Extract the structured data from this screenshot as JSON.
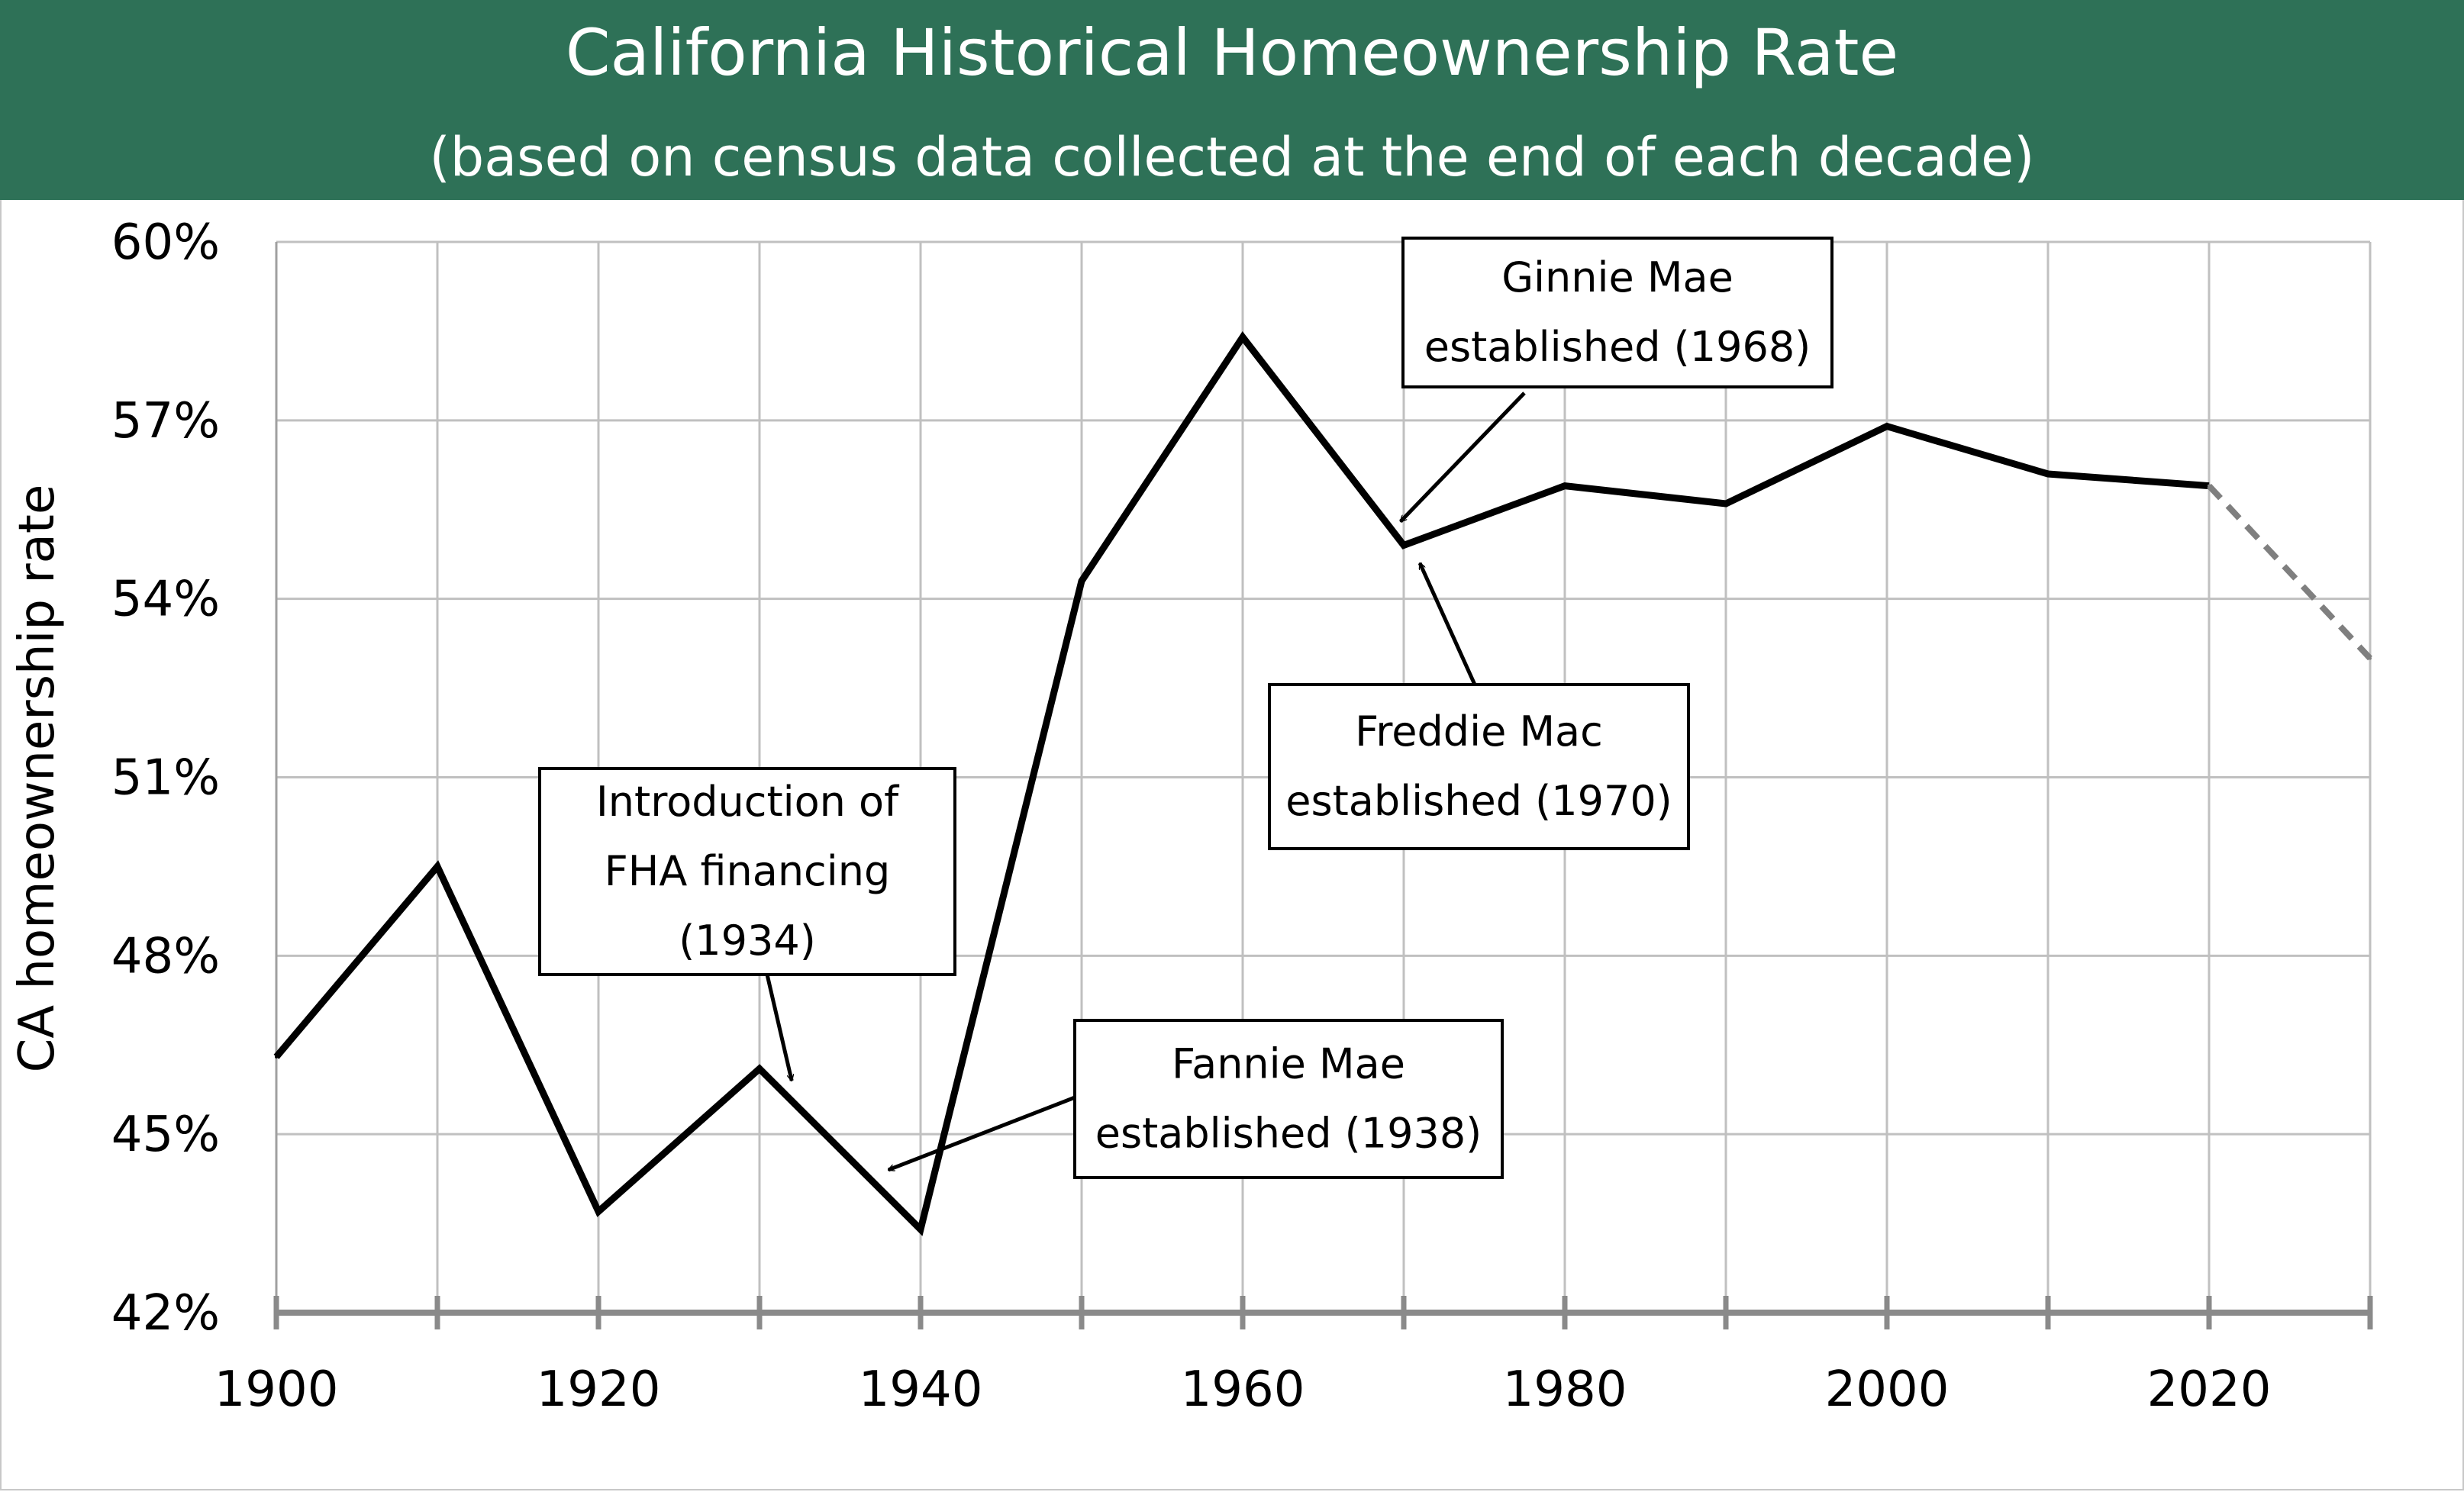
{
  "header": {
    "title": "California Historical Homeownership Rate",
    "subtitle": "(based on census data collected at the end of each decade)",
    "background_color": "#2e7157",
    "text_color": "#ffffff"
  },
  "chart_data": {
    "type": "line",
    "title": "California Historical Homeownership Rate",
    "subtitle": "(based on census data collected at the end of each decade)",
    "xlabel": "",
    "ylabel": "CA homeownership rate",
    "xlim": [
      1900,
      2030
    ],
    "ylim": [
      42,
      60
    ],
    "x_ticks": [
      1900,
      1920,
      1940,
      1960,
      1980,
      2000,
      2020
    ],
    "x_tick_labels": [
      "1900",
      "1920",
      "1940",
      "1960",
      "1980",
      "2000",
      "2020"
    ],
    "x_minor_ticks": [
      1900,
      1910,
      1920,
      1930,
      1940,
      1950,
      1960,
      1970,
      1980,
      1990,
      2000,
      2010,
      2020,
      2030
    ],
    "y_ticks": [
      42,
      45,
      48,
      51,
      54,
      57,
      60
    ],
    "y_tick_labels": [
      "42%",
      "45%",
      "48%",
      "51%",
      "54%",
      "57%",
      "60%"
    ],
    "grid": true,
    "series": [
      {
        "style": "solid",
        "color": "#000000",
        "x": [
          1900,
          1910,
          1920,
          1930,
          1940,
          1950,
          1960,
          1970,
          1980,
          1990,
          2000,
          2010,
          2020
        ],
        "y": [
          46.3,
          49.5,
          43.7,
          46.1,
          43.4,
          54.3,
          58.4,
          54.9,
          55.9,
          55.6,
          56.9,
          56.1,
          55.9
        ]
      },
      {
        "style": "dashed",
        "color": "#7f7f7f",
        "x": [
          2020,
          2030
        ],
        "y": [
          55.9,
          53.0
        ]
      }
    ],
    "annotations": [
      {
        "lines": [
          "Introduction of",
          "FHA financing",
          "(1934)"
        ],
        "target": {
          "x": 1932,
          "y": 45.9
        }
      },
      {
        "lines": [
          "Fannie Mae",
          "established (1938)"
        ],
        "target": {
          "x": 1938,
          "y": 44.4
        }
      },
      {
        "lines": [
          "Ginnie Mae",
          "established (1968)"
        ],
        "target": {
          "x": 1969.8,
          "y": 55.3
        }
      },
      {
        "lines": [
          "Freddie Mac",
          "established (1970)"
        ],
        "target": {
          "x": 1971,
          "y": 54.6
        }
      }
    ]
  }
}
